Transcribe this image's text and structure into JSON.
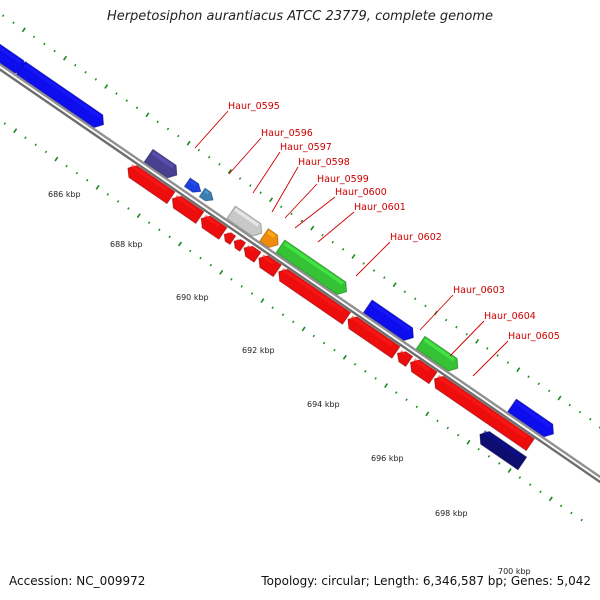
{
  "header": {
    "title": "Herpetosiphon aurantiacus ATCC 23779, complete genome"
  },
  "footer": {
    "accession": "Accession: NC_009972",
    "topology": "Topology: circular; Length: 6,346,587 bp; Genes: 5,042"
  },
  "colors": {
    "backbone": "#909090",
    "ticks": "#1a8a1a",
    "label_text": "#cc0000",
    "leader": "#cc0000"
  },
  "scale_labels": [
    "686 kbp",
    "688 kbp",
    "690 kbp",
    "692 kbp",
    "694 kbp",
    "696 kbp",
    "698 kbp",
    "700 kbp"
  ],
  "gene_labels": [
    "Haur_0595",
    "Haur_0596",
    "Haur_0597",
    "Haur_0598",
    "Haur_0599",
    "Haur_0600",
    "Haur_0601",
    "Haur_0602",
    "Haur_0603",
    "Haur_0604",
    "Haur_0605"
  ],
  "features": [
    {
      "strand": "forward",
      "color": "#1010ee"
    },
    {
      "strand": "forward",
      "color": "#1010ee"
    },
    {
      "strand": "forward",
      "color": "#4a3f8f"
    },
    {
      "strand": "forward",
      "color": "#1e40e0"
    },
    {
      "strand": "forward",
      "color": "#3d7fb0"
    },
    {
      "strand": "forward",
      "color": "#c8c8c8"
    },
    {
      "strand": "forward",
      "color": "#f08c10"
    },
    {
      "strand": "forward",
      "color": "#36c236"
    },
    {
      "strand": "forward",
      "color": "#1010ee"
    },
    {
      "strand": "forward",
      "color": "#36c236"
    },
    {
      "strand": "forward",
      "color": "#1010ee"
    },
    {
      "strand": "reverse",
      "color": "#0a0a70"
    },
    {
      "strand": "reverse",
      "color": "#ee1010"
    },
    {
      "strand": "reverse",
      "color": "#ee1010"
    },
    {
      "strand": "reverse",
      "color": "#ee1010"
    },
    {
      "strand": "reverse",
      "color": "#ee1010"
    },
    {
      "strand": "reverse",
      "color": "#ee1010"
    },
    {
      "strand": "reverse",
      "color": "#ee1010"
    },
    {
      "strand": "reverse",
      "color": "#ee1010"
    },
    {
      "strand": "reverse",
      "color": "#ee1010"
    },
    {
      "strand": "reverse",
      "color": "#ee1010"
    },
    {
      "strand": "reverse",
      "color": "#ee1010"
    },
    {
      "strand": "reverse",
      "color": "#ee1010"
    },
    {
      "strand": "reverse",
      "color": "#ee1010"
    }
  ]
}
